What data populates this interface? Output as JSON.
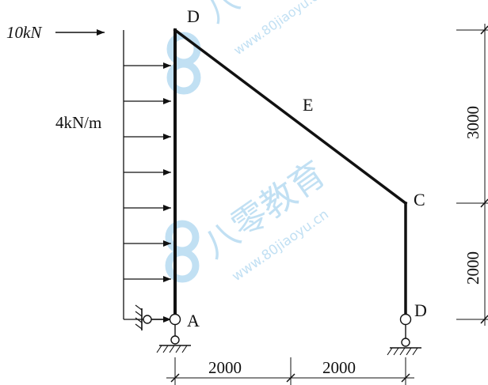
{
  "loads": {
    "point_load": "10kN",
    "distributed_load": "4kN/m"
  },
  "nodes": {
    "top_left": "D",
    "slope_mid": "E",
    "right_joint": "C",
    "bottom_left": "A",
    "bottom_right": "D"
  },
  "dimensions": {
    "horizontal": [
      "2000",
      "2000"
    ],
    "vertical": [
      "3000",
      "2000"
    ]
  },
  "watermark": {
    "brand": "八零教育",
    "site": "www.80jiaoyu.cn"
  },
  "colors": {
    "line": "#111111",
    "watermark": "#8fc6ea",
    "accent_red": "#b01a1a"
  }
}
